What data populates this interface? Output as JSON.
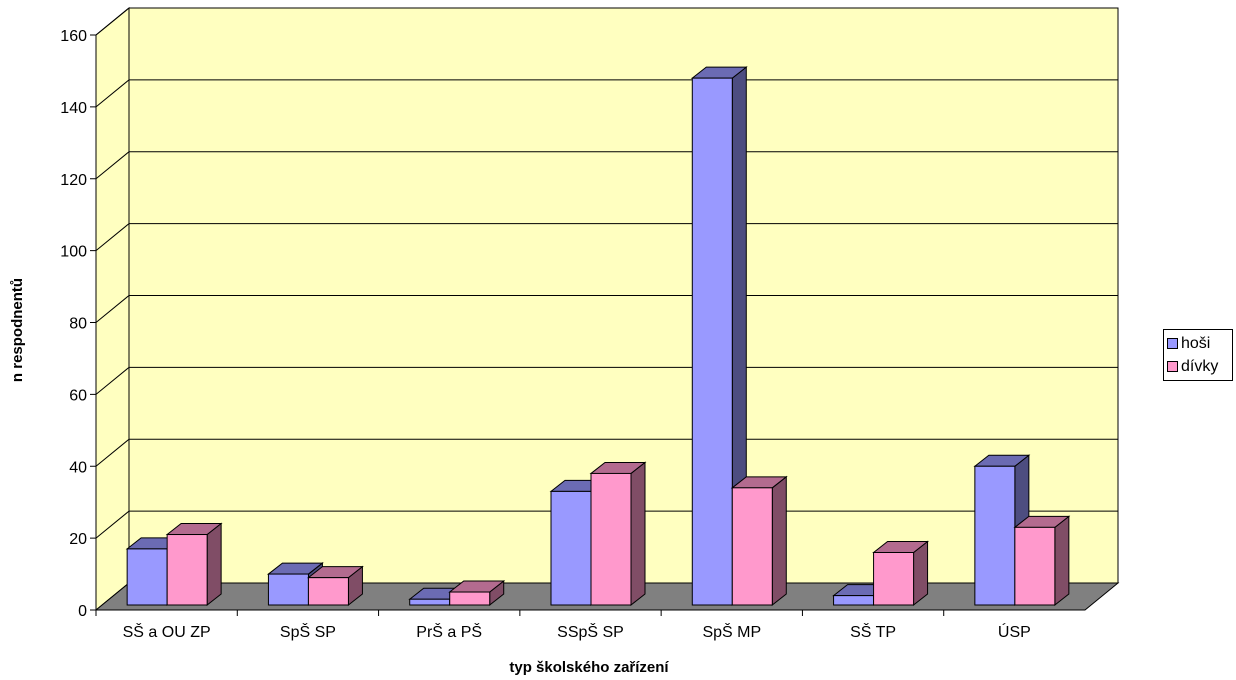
{
  "chart_data": {
    "type": "bar",
    "categories": [
      "SŠ a OU ZP",
      "SpŠ SP",
      "PrŠ a PŠ",
      "SSpŠ SP",
      "SpŠ MP",
      "SŠ TP",
      "ÚSP"
    ],
    "series": [
      {
        "name": "hoši",
        "values": [
          17,
          10,
          3,
          33,
          148,
          4,
          40
        ],
        "color": "#9999FF"
      },
      {
        "name": "dívky",
        "values": [
          21,
          9,
          5,
          38,
          34,
          16,
          23
        ],
        "color": "#FF99CC"
      }
    ],
    "xlabel": "typ školského zařízení",
    "ylabel": "n respodnentů",
    "ylim": [
      0,
      160
    ],
    "yticks": [
      "0",
      "20",
      "40",
      "60",
      "80",
      "100",
      "120",
      "140",
      "160"
    ],
    "grid": true,
    "legend": "right",
    "wall_color": "#FFFFC0",
    "floor_color": "#808080"
  }
}
